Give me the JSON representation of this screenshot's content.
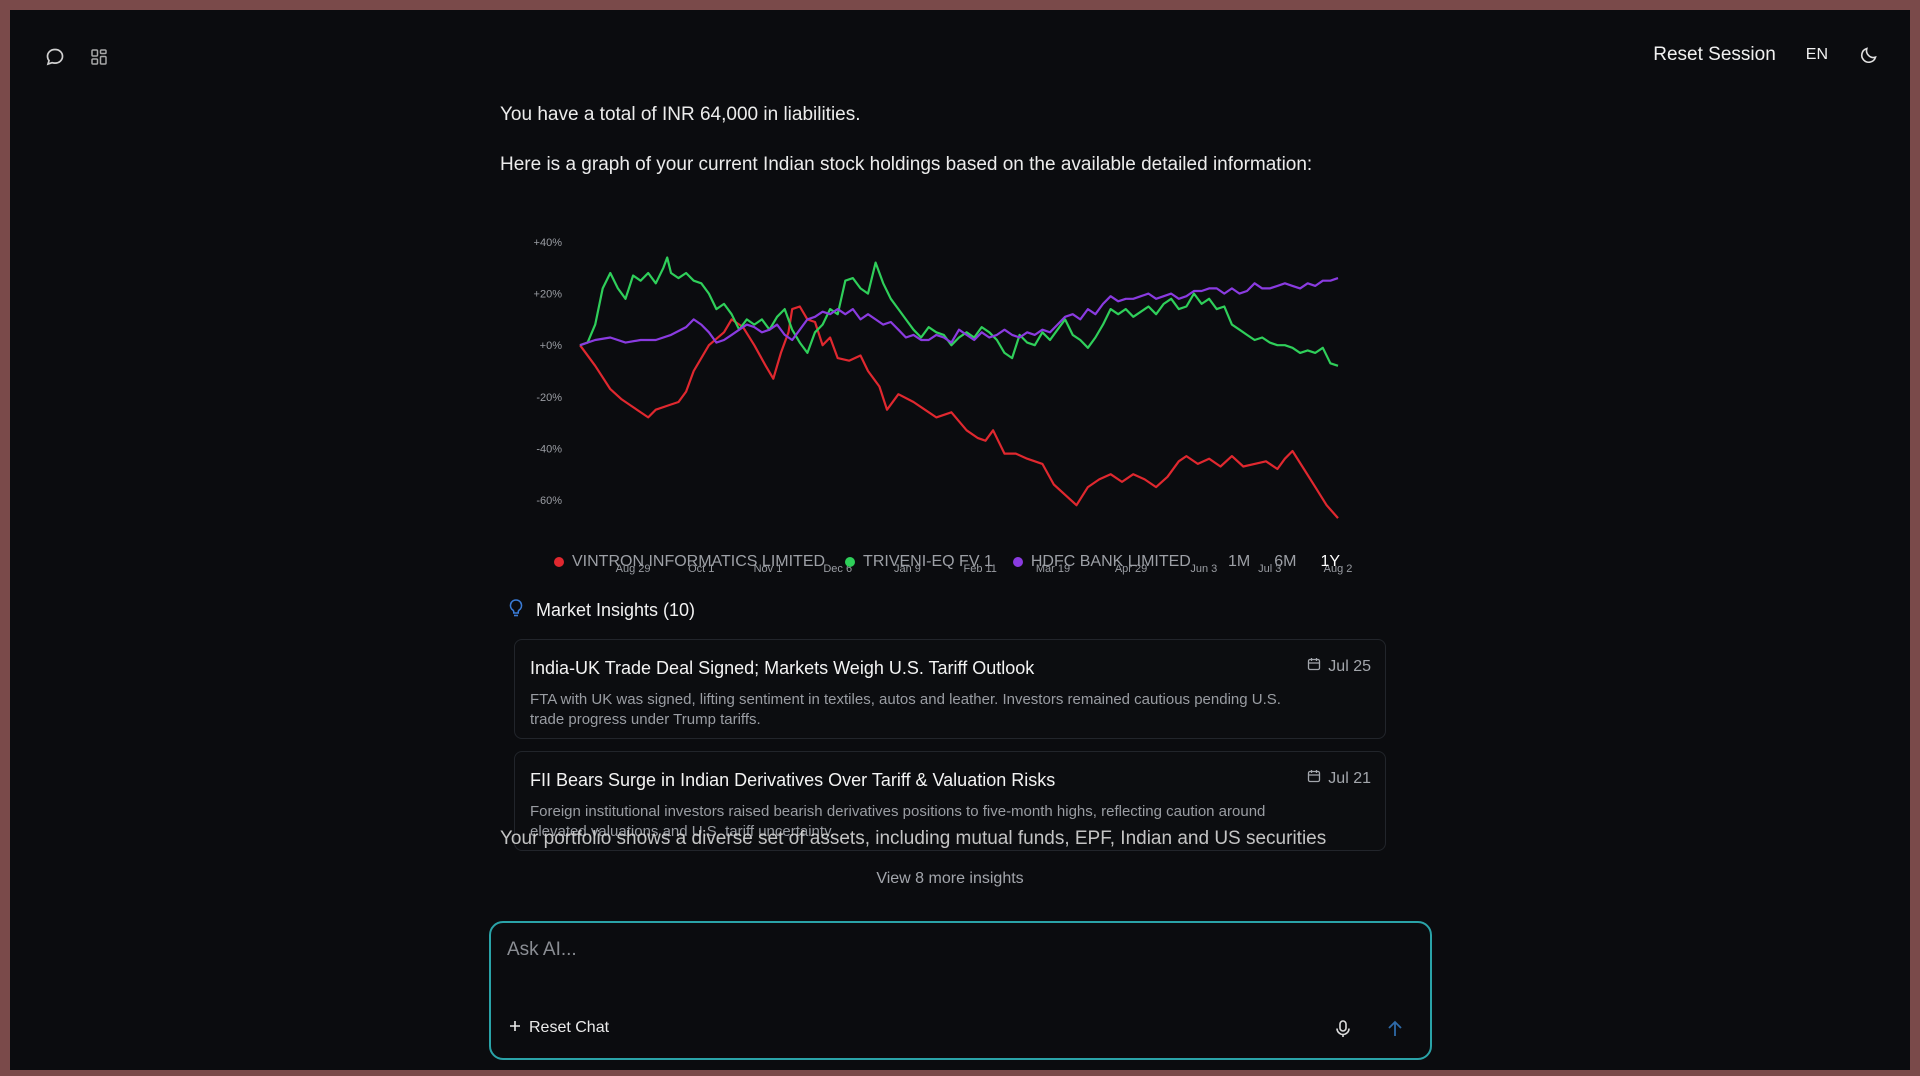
{
  "header": {
    "reset_session": "Reset Session",
    "language": "EN"
  },
  "messages": {
    "liabilities": "You have a total of INR 64,000 in liabilities.",
    "graph_intro": "Here is a graph of your current Indian stock holdings based on the available detailed information:",
    "portfolio_partial": "Your portfolio shows a diverse set of assets, including mutual funds, EPF, Indian and US securities"
  },
  "chart_data": {
    "type": "line",
    "title": "",
    "xlabel": "",
    "ylabel": "",
    "y_tick_labels": [
      "+40%",
      "+20%",
      "+0%",
      "-20%",
      "-40%",
      "-60%"
    ],
    "y_ticks": [
      40,
      20,
      0,
      -20,
      -40,
      -60
    ],
    "ylim": [
      -67,
      42
    ],
    "x_tick_labels": [
      "Aug 29",
      "Oct 1",
      "Nov 1",
      "Dec 6",
      "Jan 9",
      "Feb 11",
      "Mar 19",
      "Apr 29",
      "Jun 3",
      "Jul 3",
      "Aug 2"
    ],
    "x_tick_positions": [
      0.07,
      0.16,
      0.248,
      0.34,
      0.432,
      0.528,
      0.624,
      0.727,
      0.823,
      0.91,
      1.0
    ],
    "grid": false,
    "legend_position": "bottom",
    "x_range": [
      0,
      1
    ],
    "series": [
      {
        "name": "VINTRON INFORMATICS LIMITED",
        "color": "#e0282f",
        "points": [
          [
            0,
            0
          ],
          [
            0.02,
            -8
          ],
          [
            0.04,
            -17
          ],
          [
            0.055,
            -21
          ],
          [
            0.07,
            -24
          ],
          [
            0.09,
            -28
          ],
          [
            0.1,
            -25
          ],
          [
            0.12,
            -23
          ],
          [
            0.13,
            -22
          ],
          [
            0.14,
            -18
          ],
          [
            0.15,
            -10
          ],
          [
            0.17,
            0
          ],
          [
            0.19,
            5
          ],
          [
            0.2,
            10
          ],
          [
            0.215,
            7
          ],
          [
            0.23,
            0
          ],
          [
            0.245,
            -8
          ],
          [
            0.255,
            -13
          ],
          [
            0.265,
            -3
          ],
          [
            0.275,
            5
          ],
          [
            0.28,
            14
          ],
          [
            0.29,
            15
          ],
          [
            0.3,
            10
          ],
          [
            0.31,
            9
          ],
          [
            0.32,
            0
          ],
          [
            0.33,
            3
          ],
          [
            0.34,
            -5
          ],
          [
            0.355,
            -6
          ],
          [
            0.37,
            -4
          ],
          [
            0.38,
            -10
          ],
          [
            0.395,
            -16
          ],
          [
            0.405,
            -25
          ],
          [
            0.42,
            -19
          ],
          [
            0.44,
            -22
          ],
          [
            0.455,
            -25
          ],
          [
            0.47,
            -28
          ],
          [
            0.49,
            -26
          ],
          [
            0.51,
            -33
          ],
          [
            0.525,
            -36
          ],
          [
            0.535,
            -37
          ],
          [
            0.545,
            -33
          ],
          [
            0.56,
            -42
          ],
          [
            0.575,
            -42
          ],
          [
            0.59,
            -44
          ],
          [
            0.61,
            -46
          ],
          [
            0.625,
            -54
          ],
          [
            0.64,
            -58
          ],
          [
            0.655,
            -62
          ],
          [
            0.67,
            -55
          ],
          [
            0.685,
            -52
          ],
          [
            0.7,
            -50
          ],
          [
            0.715,
            -53
          ],
          [
            0.73,
            -50
          ],
          [
            0.745,
            -52
          ],
          [
            0.76,
            -55
          ],
          [
            0.775,
            -51
          ],
          [
            0.79,
            -45
          ],
          [
            0.8,
            -43
          ],
          [
            0.815,
            -46
          ],
          [
            0.83,
            -44
          ],
          [
            0.845,
            -47
          ],
          [
            0.86,
            -43
          ],
          [
            0.875,
            -47
          ],
          [
            0.89,
            -46
          ],
          [
            0.905,
            -45
          ],
          [
            0.92,
            -48
          ],
          [
            0.93,
            -44
          ],
          [
            0.94,
            -41
          ],
          [
            0.955,
            -48
          ],
          [
            0.97,
            -55
          ],
          [
            0.985,
            -62
          ],
          [
            1.0,
            -67
          ]
        ]
      },
      {
        "name": "TRIVENI-EQ FV 1",
        "color": "#2fcf5a",
        "points": [
          [
            0,
            0
          ],
          [
            0.01,
            1
          ],
          [
            0.02,
            8
          ],
          [
            0.03,
            22
          ],
          [
            0.04,
            28
          ],
          [
            0.05,
            22
          ],
          [
            0.06,
            18
          ],
          [
            0.07,
            27
          ],
          [
            0.08,
            25
          ],
          [
            0.09,
            28
          ],
          [
            0.1,
            24
          ],
          [
            0.11,
            30
          ],
          [
            0.115,
            34
          ],
          [
            0.12,
            28
          ],
          [
            0.13,
            26
          ],
          [
            0.14,
            28
          ],
          [
            0.15,
            25
          ],
          [
            0.16,
            24
          ],
          [
            0.17,
            20
          ],
          [
            0.18,
            14
          ],
          [
            0.19,
            16
          ],
          [
            0.2,
            12
          ],
          [
            0.21,
            6
          ],
          [
            0.22,
            10
          ],
          [
            0.23,
            8
          ],
          [
            0.24,
            10
          ],
          [
            0.25,
            6
          ],
          [
            0.26,
            11
          ],
          [
            0.27,
            14
          ],
          [
            0.28,
            6
          ],
          [
            0.29,
            1
          ],
          [
            0.3,
            -3
          ],
          [
            0.31,
            5
          ],
          [
            0.32,
            8
          ],
          [
            0.33,
            14
          ],
          [
            0.34,
            12
          ],
          [
            0.35,
            25
          ],
          [
            0.36,
            26
          ],
          [
            0.37,
            22
          ],
          [
            0.38,
            20
          ],
          [
            0.39,
            32
          ],
          [
            0.4,
            24
          ],
          [
            0.41,
            18
          ],
          [
            0.42,
            14
          ],
          [
            0.43,
            10
          ],
          [
            0.44,
            6
          ],
          [
            0.45,
            3
          ],
          [
            0.46,
            7
          ],
          [
            0.47,
            5
          ],
          [
            0.48,
            4
          ],
          [
            0.49,
            0
          ],
          [
            0.5,
            3
          ],
          [
            0.51,
            5
          ],
          [
            0.52,
            3
          ],
          [
            0.53,
            7
          ],
          [
            0.54,
            5
          ],
          [
            0.55,
            2
          ],
          [
            0.56,
            -3
          ],
          [
            0.57,
            -5
          ],
          [
            0.58,
            4
          ],
          [
            0.59,
            1
          ],
          [
            0.6,
            0
          ],
          [
            0.61,
            5
          ],
          [
            0.62,
            2
          ],
          [
            0.63,
            6
          ],
          [
            0.64,
            10
          ],
          [
            0.65,
            4
          ],
          [
            0.66,
            2
          ],
          [
            0.67,
            -1
          ],
          [
            0.68,
            3
          ],
          [
            0.69,
            8
          ],
          [
            0.7,
            14
          ],
          [
            0.71,
            12
          ],
          [
            0.72,
            14
          ],
          [
            0.73,
            11
          ],
          [
            0.74,
            13
          ],
          [
            0.75,
            15
          ],
          [
            0.76,
            12
          ],
          [
            0.77,
            16
          ],
          [
            0.78,
            18
          ],
          [
            0.79,
            14
          ],
          [
            0.8,
            15
          ],
          [
            0.81,
            20
          ],
          [
            0.82,
            16
          ],
          [
            0.83,
            18
          ],
          [
            0.84,
            14
          ],
          [
            0.85,
            15
          ],
          [
            0.86,
            8
          ],
          [
            0.87,
            6
          ],
          [
            0.88,
            4
          ],
          [
            0.89,
            2
          ],
          [
            0.9,
            3
          ],
          [
            0.91,
            1
          ],
          [
            0.92,
            0
          ],
          [
            0.93,
            0
          ],
          [
            0.94,
            -1
          ],
          [
            0.95,
            -3
          ],
          [
            0.96,
            -2
          ],
          [
            0.97,
            -3
          ],
          [
            0.98,
            -1
          ],
          [
            0.99,
            -7
          ],
          [
            1.0,
            -8
          ]
        ]
      },
      {
        "name": "HDFC BANK LIMITED",
        "color": "#8a3be0",
        "points": [
          [
            0,
            0
          ],
          [
            0.02,
            2
          ],
          [
            0.04,
            3
          ],
          [
            0.06,
            1
          ],
          [
            0.08,
            2
          ],
          [
            0.1,
            2
          ],
          [
            0.12,
            4
          ],
          [
            0.14,
            7
          ],
          [
            0.15,
            10
          ],
          [
            0.16,
            8
          ],
          [
            0.17,
            5
          ],
          [
            0.18,
            1
          ],
          [
            0.19,
            2
          ],
          [
            0.2,
            4
          ],
          [
            0.21,
            6
          ],
          [
            0.22,
            8
          ],
          [
            0.23,
            7
          ],
          [
            0.24,
            5
          ],
          [
            0.25,
            6
          ],
          [
            0.26,
            8
          ],
          [
            0.27,
            4
          ],
          [
            0.28,
            2
          ],
          [
            0.29,
            6
          ],
          [
            0.3,
            10
          ],
          [
            0.31,
            11
          ],
          [
            0.32,
            13
          ],
          [
            0.33,
            12
          ],
          [
            0.34,
            14
          ],
          [
            0.35,
            12
          ],
          [
            0.36,
            14
          ],
          [
            0.37,
            10
          ],
          [
            0.38,
            12
          ],
          [
            0.39,
            10
          ],
          [
            0.4,
            8
          ],
          [
            0.41,
            9
          ],
          [
            0.42,
            6
          ],
          [
            0.43,
            3
          ],
          [
            0.44,
            4
          ],
          [
            0.45,
            2
          ],
          [
            0.46,
            2
          ],
          [
            0.47,
            4
          ],
          [
            0.48,
            3
          ],
          [
            0.49,
            1
          ],
          [
            0.5,
            6
          ],
          [
            0.51,
            4
          ],
          [
            0.52,
            2
          ],
          [
            0.53,
            5
          ],
          [
            0.54,
            3
          ],
          [
            0.55,
            4
          ],
          [
            0.56,
            6
          ],
          [
            0.57,
            4
          ],
          [
            0.58,
            3
          ],
          [
            0.59,
            5
          ],
          [
            0.6,
            4
          ],
          [
            0.61,
            6
          ],
          [
            0.62,
            5
          ],
          [
            0.63,
            8
          ],
          [
            0.64,
            11
          ],
          [
            0.65,
            12
          ],
          [
            0.66,
            10
          ],
          [
            0.67,
            14
          ],
          [
            0.68,
            12
          ],
          [
            0.69,
            16
          ],
          [
            0.7,
            19
          ],
          [
            0.71,
            17
          ],
          [
            0.72,
            18
          ],
          [
            0.73,
            18
          ],
          [
            0.74,
            19
          ],
          [
            0.75,
            20
          ],
          [
            0.76,
            18
          ],
          [
            0.77,
            19
          ],
          [
            0.78,
            20
          ],
          [
            0.79,
            18
          ],
          [
            0.8,
            19
          ],
          [
            0.81,
            21
          ],
          [
            0.82,
            21
          ],
          [
            0.83,
            22
          ],
          [
            0.84,
            22
          ],
          [
            0.85,
            20
          ],
          [
            0.86,
            22
          ],
          [
            0.87,
            20
          ],
          [
            0.88,
            21
          ],
          [
            0.89,
            24
          ],
          [
            0.9,
            22
          ],
          [
            0.91,
            22
          ],
          [
            0.92,
            23
          ],
          [
            0.93,
            24
          ],
          [
            0.94,
            23
          ],
          [
            0.95,
            22
          ],
          [
            0.96,
            24
          ],
          [
            0.97,
            23
          ],
          [
            0.98,
            25
          ],
          [
            0.99,
            25
          ],
          [
            1.0,
            26
          ]
        ]
      }
    ]
  },
  "range_tabs": [
    {
      "label": "1M",
      "active": false
    },
    {
      "label": "6M",
      "active": false
    },
    {
      "label": "1Y",
      "active": true
    }
  ],
  "insights": {
    "header": "Market Insights (10)",
    "cards": [
      {
        "title": "India-UK Trade Deal Signed; Markets Weigh U.S. Tariff Outlook",
        "body": "FTA with UK was signed, lifting sentiment in textiles, autos and leather. Investors remained cautious pending U.S. trade progress under Trump tariffs.",
        "date": "Jul 25"
      },
      {
        "title": "FII Bears Surge in Indian Derivatives Over Tariff & Valuation Risks",
        "body": "Foreign institutional investors raised bearish derivatives positions to five-month highs, reflecting caution around elevated valuations and U.S. tariff uncertainty.",
        "date": "Jul 21"
      }
    ],
    "view_more": "View 8 more insights"
  },
  "composer": {
    "placeholder": "Ask AI...",
    "reset_chat": "Reset Chat"
  }
}
